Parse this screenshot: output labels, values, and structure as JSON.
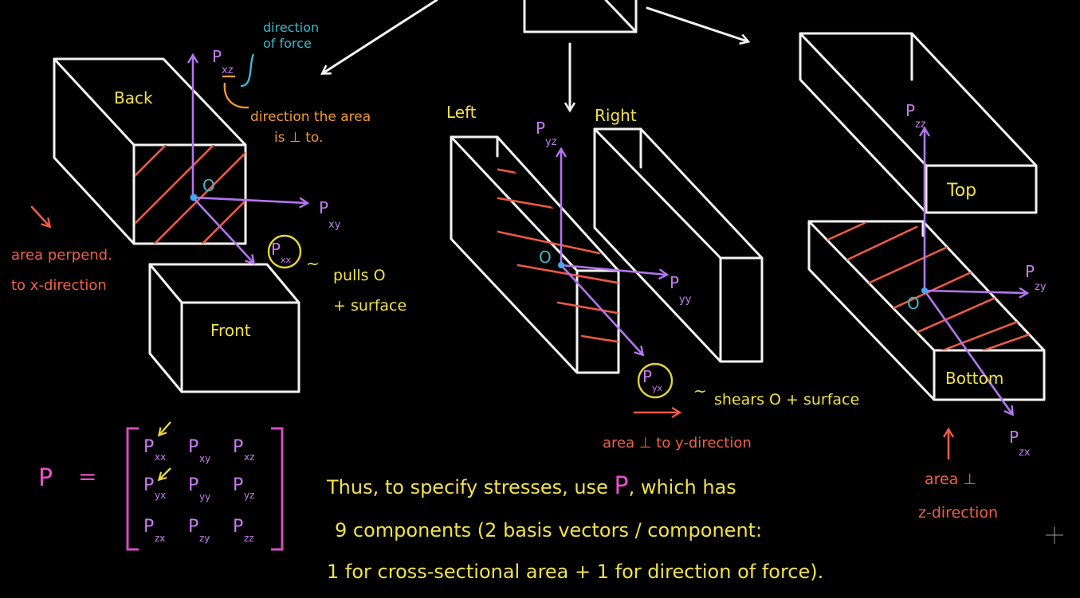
{
  "faces": {
    "back": "Back",
    "front": "Front",
    "left": "Left",
    "right": "Right",
    "top": "Top",
    "bottom": "Bottom"
  },
  "origin_label": "O",
  "annotations": {
    "direction_of_force": [
      "direction",
      "of force"
    ],
    "direction_area_perp": [
      "direction the area",
      "is ⊥ to."
    ],
    "area_perp_x": [
      "area perpend.",
      "to x-direction"
    ],
    "pulls": [
      "pulls O",
      "+ surface"
    ],
    "shears": "shears O + surface",
    "area_perp_y": "area ⊥ to y-direction",
    "area_perp_z": [
      "area ⊥",
      "z-direction"
    ]
  },
  "stress_labels": {
    "p_xz_small": "P",
    "p_xz_sub": "xz",
    "p_xy": "P",
    "p_xy_sub": "xy",
    "p_xx": "P",
    "p_xx_sub": "xx",
    "p_yz": "P",
    "p_yz_sub": "yz",
    "p_yy": "P",
    "p_yy_sub": "yy",
    "p_yx": "P",
    "p_yx_sub": "yx",
    "p_zz": "P",
    "p_zz_sub": "zz",
    "p_zy": "P",
    "p_zy_sub": "zy",
    "p_zx": "P",
    "p_zx_sub": "zx"
  },
  "matrix": {
    "lhs": "P",
    "equals": "=",
    "rows": [
      [
        {
          "p": "P",
          "s": "xx"
        },
        {
          "p": "P",
          "s": "xy"
        },
        {
          "p": "P",
          "s": "xz"
        }
      ],
      [
        {
          "p": "P",
          "s": "yx"
        },
        {
          "p": "P",
          "s": "yy"
        },
        {
          "p": "P",
          "s": "yz"
        }
      ],
      [
        {
          "p": "P",
          "s": "zx"
        },
        {
          "p": "P",
          "s": "zy"
        },
        {
          "p": "P",
          "s": "zz"
        }
      ]
    ]
  },
  "summary": {
    "line1_a": "Thus, to specify stresses, use ",
    "line1_p": "P",
    "line1_b": ", which has",
    "line2": "9 components (2 basis vectors / component:",
    "line3": "1 for cross-sectional area + 1 for direction of force)."
  },
  "colors": {
    "background": "#000000",
    "lines": "#f4f4f4",
    "labels": "#f2e24a",
    "vectors": "#b276ee",
    "hatching": "#ec5a45",
    "notes_cyan": "#3fb8c8",
    "notes_orange": "#f29a2e",
    "matrix": "#d84cc0"
  }
}
